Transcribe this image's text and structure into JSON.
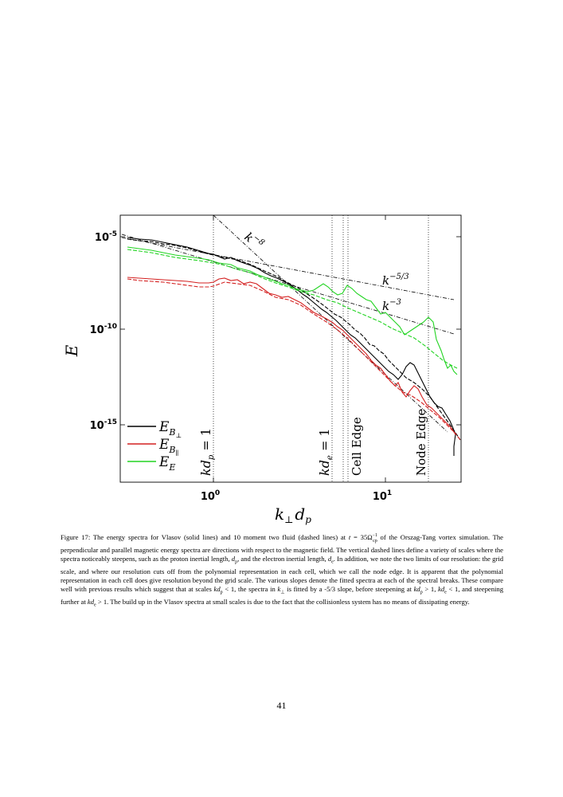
{
  "figure": {
    "axis_labels": {
      "x": "k",
      "x_sub1": "⊥",
      "x_mid": "d",
      "x_sub2": "p",
      "y": "E"
    },
    "y_ticks": [
      {
        "base": "10",
        "exp": "-5"
      },
      {
        "base": "10",
        "exp": "-10"
      },
      {
        "base": "10",
        "exp": "-15"
      }
    ],
    "x_ticks": [
      {
        "base": "10",
        "exp": "0"
      },
      {
        "base": "10",
        "exp": "1"
      }
    ],
    "slopes": {
      "k8": {
        "base": "k",
        "exp": "−8"
      },
      "k53": {
        "base": "k",
        "exp": "−5/3"
      },
      "k3": {
        "base": "k",
        "exp": "−3"
      }
    },
    "vlines": {
      "kdp": {
        "a": "kd",
        "b": "p",
        "c": " = 1"
      },
      "kde": {
        "a": "kd",
        "b": "e",
        "c": " = 1"
      },
      "cell": "Cell Edge",
      "node": "Node Edge"
    },
    "legend": [
      {
        "base": "E",
        "sub": "B",
        "subsub": "⊥",
        "color": "#000000"
      },
      {
        "base": "E",
        "sub": "B",
        "subsub": "∥",
        "color": "#d42020"
      },
      {
        "base": "E",
        "sub": "E",
        "subsub": "",
        "color": "#22d422"
      }
    ]
  },
  "caption": {
    "p1": "Figure 17: The energy spectra for Vlasov (solid lines) and 10 moment two fluid (dashed lines) at ",
    "t_var": "t",
    "eq": " = 35Ω",
    "omega_sup": "−1",
    "omega_sub": "cp",
    "p2": " of the Orszag-Tang vortex simulation. The perpendicular and parallel magnetic energy spectra are directions with respect to the magnetic field. The vertical dashed lines define a variety of scales where the spectra noticeably steepens, such as the proton inertial length, ",
    "dp_d": "d",
    "dp_sub": "p",
    "p3": ", and the electron inertial length, ",
    "de_d": "d",
    "de_sub": "e",
    "p4": ". In addition, we note the two limits of our resolution: the grid scale, and where our resolution cuts off from the polynomial representation in each cell, which we call the node edge. It is apparent that the polynomial representation in each cell does give resolution beyond the grid scale. The various slopes denote the fitted spectra at each of the spectral breaks. These compare well with previous results which suggest that at scales ",
    "c1_k": "kd",
    "c1_sub": "p",
    "c1_rel": " < 1, the spectra in ",
    "c2_k": "k",
    "c2_sub": "⊥",
    "p5": " is fitted by a -5/3 slope, before steepening at ",
    "c3_k": "kd",
    "c3_sub": "p",
    "c3_rel": " > 1, ",
    "c4_k": "kd",
    "c4_sub": "e",
    "c4_rel": " < 1",
    "p6": ", and steepening further at ",
    "c5_k": "kd",
    "c5_sub": "e",
    "c5_rel": " > 1",
    "p7": ". The build up in the Vlasov spectra at small scales is due to the fact that the collisionless system has no means of dissipating energy."
  },
  "page_number": "41"
}
